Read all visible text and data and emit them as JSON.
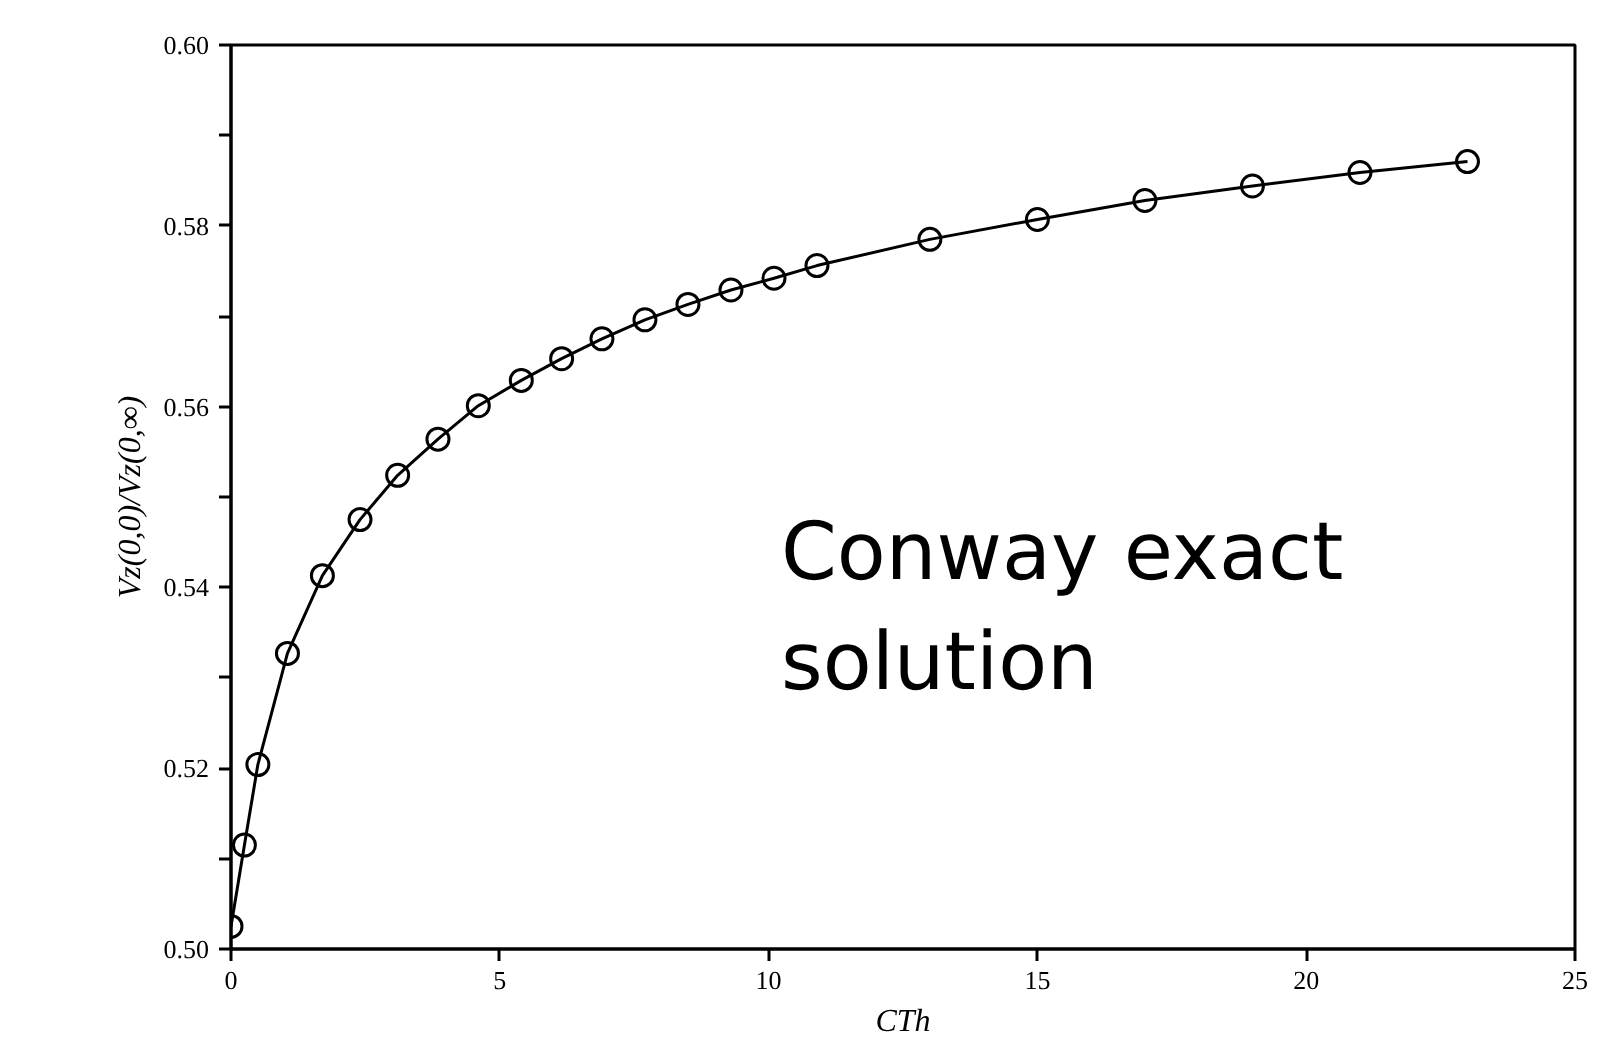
{
  "chart_data": {
    "type": "line",
    "x": [
      0,
      0.25,
      0.5,
      1.05,
      1.7,
      2.4,
      3.1,
      3.85,
      4.6,
      5.4,
      6.15,
      6.9,
      7.7,
      8.5,
      9.3,
      10.1,
      10.9,
      13,
      15,
      17,
      19,
      21,
      23
    ],
    "series": [
      {
        "color": "#000000",
        "values": [
          0.5025,
          0.5115,
          0.5204,
          0.5327,
          0.5413,
          0.5475,
          0.5524,
          0.5564,
          0.5601,
          0.5629,
          0.5653,
          0.5675,
          0.5696,
          0.5713,
          0.5729,
          0.5742,
          0.5756,
          0.5785,
          0.5807,
          0.5828,
          0.5844,
          0.5859,
          0.5871
        ]
      }
    ],
    "xlabel": "CTh",
    "ylabel": "Vz(0,0)/Vz(0,∞)",
    "annotations": [
      "Conway exact solution"
    ],
    "xlim": [
      0,
      25
    ],
    "ylim": [
      0.5,
      0.6
    ],
    "xticks": [
      0,
      5,
      10,
      15,
      20,
      25
    ],
    "yticks": [
      {
        "value": 0.5,
        "label": "0.50"
      },
      {
        "value": 0.51,
        "label": null
      },
      {
        "value": 0.52,
        "label": "0.52"
      },
      {
        "value": 0.53,
        "label": null
      },
      {
        "value": 0.54,
        "label": "0.54"
      },
      {
        "value": 0.55,
        "label": null
      },
      {
        "value": 0.56,
        "label": "0.56"
      },
      {
        "value": 0.57,
        "label": null
      },
      {
        "value": 0.58,
        "label": "0.58"
      },
      {
        "value": 0.59,
        "label": null
      },
      {
        "value": 0.6,
        "label": "0.60"
      }
    ],
    "marker": "circle",
    "line_style": "solid",
    "grid": false
  }
}
